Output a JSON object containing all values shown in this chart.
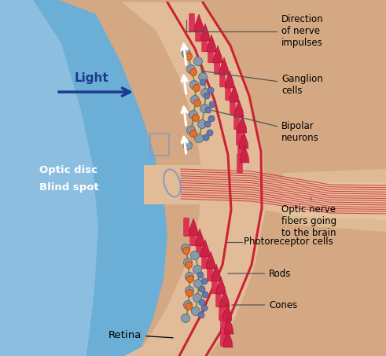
{
  "bg_color": "#FFFFFF",
  "skin_color": "#D4A882",
  "eye_blue_light": "#A8CCE8",
  "eye_blue": "#6BAED6",
  "retina_red": "#CC2233",
  "nerve_red": "#CC2233",
  "rod_color": "#DD3355",
  "cone_color": "#CC2244",
  "ganglion_color": "#7788AA",
  "bipolar_color": "#556688",
  "green_line": "#448833",
  "orange_cell": "#E07030",
  "light_blue": "#1a3a8a",
  "label_line": "#555555",
  "white": "#FFFFFF",
  "black": "#000000",
  "labels": {
    "direction": "Direction\nof nerve\nimpulses",
    "ganglion": "Ganglion\ncells",
    "bipolar": "Bipolar\nneurons",
    "optic_nerve": "Optic nerve\nfibers going\nto the brain",
    "photoreceptor": "Photoreceptor cells",
    "rods": "Rods",
    "cones": "Cones",
    "optic_disc": "Optic disc",
    "blind_spot": "Blind spot",
    "retina": "Retina",
    "light": "Light"
  }
}
